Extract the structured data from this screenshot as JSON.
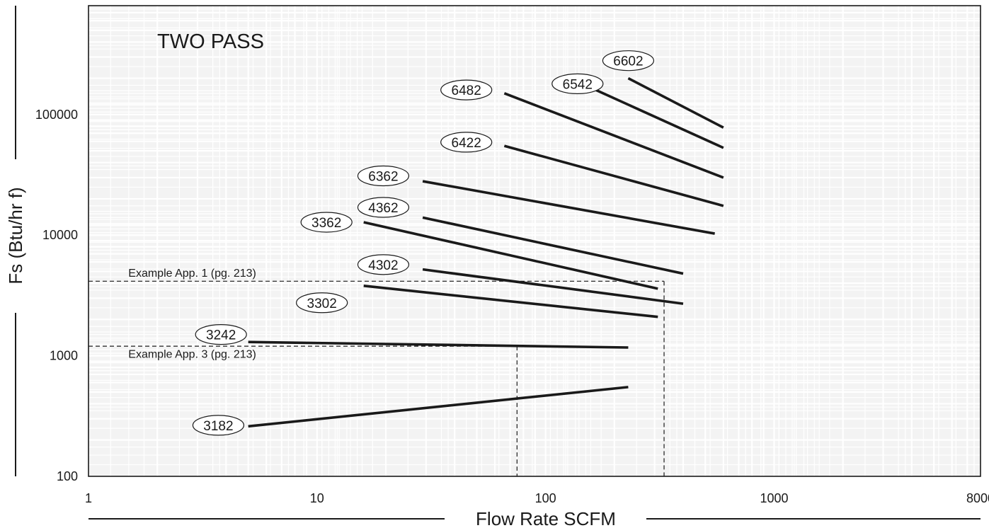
{
  "chart_data": {
    "type": "line",
    "title": "TWO PASS",
    "xlabel": "Flow Rate SCFM",
    "ylabel": "Fs (Btu/hr f)",
    "xscale": "log",
    "yscale": "log",
    "xlim": [
      1,
      8000
    ],
    "ylim": [
      100,
      800000
    ],
    "x_ticks": [
      {
        "value": 1,
        "label": "1"
      },
      {
        "value": 10,
        "label": "10"
      },
      {
        "value": 100,
        "label": "100"
      },
      {
        "value": 1000,
        "label": "1000"
      },
      {
        "value": 8000,
        "label": "8000"
      }
    ],
    "y_ticks": [
      {
        "value": 100,
        "label": "100"
      },
      {
        "value": 1000,
        "label": "1000"
      },
      {
        "value": 10000,
        "label": "10000"
      },
      {
        "value": 100000,
        "label": "100000"
      }
    ],
    "grid": true,
    "legend": "none",
    "series": [
      {
        "name": "6602",
        "x": [
          230,
          600
        ],
        "y": [
          200000,
          78000
        ],
        "label_at": [
          230,
          280000
        ]
      },
      {
        "name": "6542",
        "x": [
          160,
          600
        ],
        "y": [
          165000,
          53000
        ],
        "label_at": [
          138,
          180000
        ]
      },
      {
        "name": "6482",
        "x": [
          66,
          600
        ],
        "y": [
          150000,
          30000
        ],
        "label_at": [
          45,
          160000
        ]
      },
      {
        "name": "6422",
        "x": [
          66,
          600
        ],
        "y": [
          55000,
          17500
        ],
        "label_at": [
          45,
          59000
        ]
      },
      {
        "name": "6362",
        "x": [
          29,
          550
        ],
        "y": [
          28000,
          10300
        ],
        "label_at": [
          19.5,
          31000
        ]
      },
      {
        "name": "4362",
        "x": [
          29,
          400
        ],
        "y": [
          14000,
          4800
        ],
        "label_at": [
          19.5,
          17000
        ]
      },
      {
        "name": "3362",
        "x": [
          16,
          310
        ],
        "y": [
          12800,
          3600
        ],
        "label_at": [
          11,
          12800
        ]
      },
      {
        "name": "4302",
        "x": [
          29,
          400
        ],
        "y": [
          5200,
          2700
        ],
        "label_at": [
          19.5,
          5700
        ]
      },
      {
        "name": "3302",
        "x": [
          16,
          310
        ],
        "y": [
          3800,
          2100
        ],
        "label_at": [
          10.5,
          2750
        ]
      },
      {
        "name": "3242",
        "x": [
          5,
          230
        ],
        "y": [
          1300,
          1170
        ],
        "label_at": [
          3.8,
          1500
        ]
      },
      {
        "name": "3182",
        "x": [
          5,
          230
        ],
        "y": [
          260,
          550
        ],
        "label_at": [
          3.7,
          265
        ]
      }
    ],
    "annotations": [
      {
        "label": "Example App. 1 (pg. 213)",
        "flow": 330,
        "fs": 4150,
        "label_anchor": [
          1.25,
          4900
        ]
      },
      {
        "label": "Example App. 3 (pg. 213)",
        "flow": 75,
        "fs": 1200,
        "label_anchor": [
          1.25,
          1040
        ]
      }
    ]
  }
}
